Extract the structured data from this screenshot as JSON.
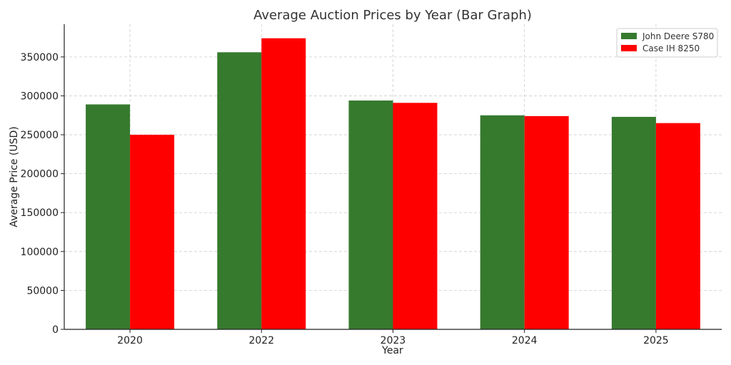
{
  "chart_data": {
    "type": "bar",
    "title": "Average Auction Prices by Year (Bar Graph)",
    "xlabel": "Year",
    "ylabel": "Average Price (USD)",
    "categories": [
      "2020",
      "2022",
      "2023",
      "2024",
      "2025"
    ],
    "series": [
      {
        "name": "John Deere S780",
        "color": "#367A2E",
        "values": [
          289000,
          356000,
          294000,
          275000,
          273000
        ]
      },
      {
        "name": "Case IH 8250",
        "color": "#FF0000",
        "values": [
          250000,
          374000,
          291000,
          274000,
          265000
        ]
      }
    ],
    "ylim": [
      0,
      392000
    ],
    "yticks": [
      0,
      50000,
      100000,
      150000,
      200000,
      250000,
      300000,
      350000
    ],
    "grid": true,
    "legend_position": "top-right"
  }
}
